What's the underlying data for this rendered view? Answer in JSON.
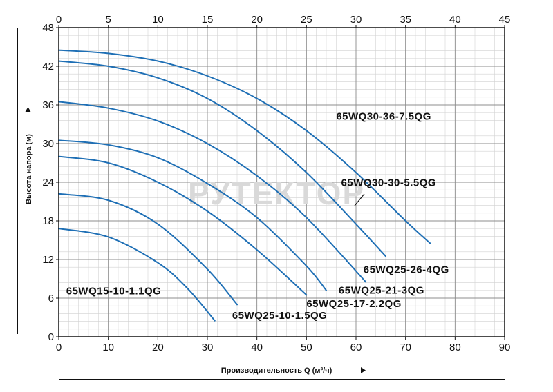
{
  "chart_data": {
    "type": "line",
    "xlabel": "Производительность Q (м³/ч)",
    "ylabel": "Высота напора (м)",
    "xlim": [
      0,
      90
    ],
    "ylim": [
      0,
      48
    ],
    "x_ticks": [
      "0",
      "10",
      "20",
      "30",
      "40",
      "50",
      "60",
      "70",
      "80",
      "90"
    ],
    "x2_ticks": [
      "0",
      "5",
      "10",
      "15",
      "20",
      "25",
      "30",
      "35",
      "40",
      "45"
    ],
    "x2lim": [
      0,
      45
    ],
    "y_ticks": [
      "0",
      "6",
      "12",
      "18",
      "24",
      "30",
      "36",
      "42",
      "48"
    ],
    "grid": true,
    "watermark": "РУТЕКТОР",
    "series": [
      {
        "name": "65WQ15-10-1.1QG",
        "x": [
          0,
          10,
          20,
          26,
          31.5
        ],
        "y": [
          16.8,
          15.5,
          11.5,
          7.5,
          2.5
        ]
      },
      {
        "name": "65WQ25-10-1.5QG",
        "x": [
          0,
          10,
          20,
          30,
          36
        ],
        "y": [
          22.2,
          21.2,
          17.5,
          10.5,
          5.0
        ]
      },
      {
        "name": "65WQ25-17-2.2QG",
        "x": [
          0,
          10,
          20,
          30,
          40,
          50
        ],
        "y": [
          28.0,
          27.0,
          24.0,
          19.5,
          13.5,
          6.5
        ]
      },
      {
        "name": "65WQ25-21-3QG",
        "x": [
          0,
          10,
          20,
          30,
          40,
          50,
          54
        ],
        "y": [
          30.5,
          29.8,
          27.8,
          23.8,
          18.5,
          11.0,
          7.2
        ]
      },
      {
        "name": "65WQ25-26-4QG",
        "x": [
          0,
          10,
          20,
          30,
          40,
          50,
          62
        ],
        "y": [
          36.5,
          35.5,
          33.5,
          30.0,
          25.0,
          18.5,
          8.5
        ]
      },
      {
        "name": "65WQ30-30-5.5QG",
        "x": [
          0,
          10,
          20,
          30,
          40,
          50,
          60,
          66
        ],
        "y": [
          42.8,
          42.0,
          40.2,
          37.0,
          32.0,
          25.5,
          17.5,
          12.5
        ]
      },
      {
        "name": "65WQ30-36-7.5QG",
        "x": [
          0,
          10,
          20,
          30,
          40,
          50,
          60,
          70,
          75
        ],
        "y": [
          44.5,
          44.0,
          42.8,
          40.5,
          37.0,
          32.0,
          25.5,
          18.0,
          14.5
        ]
      }
    ],
    "labels": [
      {
        "series": 0,
        "text": "65WQ15-10-1.1QG",
        "x": 1.5,
        "y": 6.6
      },
      {
        "series": 1,
        "text": "65WQ25-10-1.5QG",
        "x": 35,
        "y": 2.8
      },
      {
        "series": 2,
        "text": "65WQ25-17-2.2QG",
        "x": 50,
        "y": 4.6
      },
      {
        "series": 3,
        "text": "65WQ25-21-3QG",
        "x": 56.5,
        "y": 6.7
      },
      {
        "series": 4,
        "text": "65WQ25-26-4QG",
        "x": 61.5,
        "y": 9.9
      },
      {
        "series": 5,
        "text": "65WQ30-30-5.5QG",
        "x": 57,
        "y": 23.4
      },
      {
        "series": 6,
        "text": "65WQ30-36-7.5QG",
        "x": 56,
        "y": 33.7
      }
    ],
    "line_color": "#1e6fb5"
  }
}
